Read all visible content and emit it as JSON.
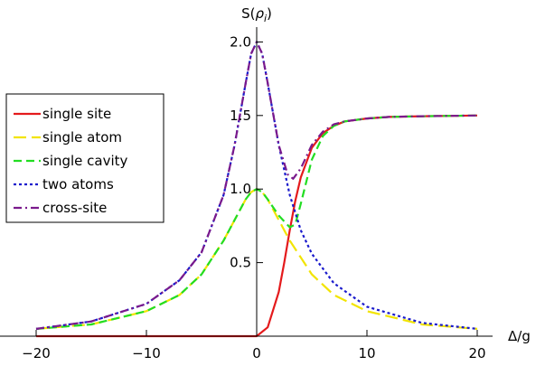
{
  "chart_data": {
    "type": "line",
    "title": "",
    "xlabel": "Δ/g",
    "ylabel": "S(ρ_i)",
    "ylabel_parts": {
      "prefix": "S(",
      "symbol": "ρ",
      "subscript": "i",
      "suffix": ")"
    },
    "xlim": [
      -20,
      20
    ],
    "ylim": [
      0,
      2.15
    ],
    "x_ticks": [
      -20,
      -10,
      0,
      10,
      20
    ],
    "x_tick_labels": [
      "−20",
      "−10",
      "0",
      "10",
      "20"
    ],
    "y_ticks": [
      0.5,
      1.0,
      1.5,
      2.0
    ],
    "y_tick_labels": [
      "0.5",
      "1.0",
      "1.5",
      "2.0"
    ],
    "grid": false,
    "legend_position": "left",
    "series": [
      {
        "name": "single site",
        "color": "#e41a1c",
        "dash": "solid",
        "x": [
          -20,
          -5,
          -2,
          -1,
          0,
          1,
          2,
          2.5,
          3,
          3.5,
          4,
          5,
          6,
          7,
          8,
          10,
          12,
          15,
          20
        ],
        "y": [
          0,
          0,
          0,
          0,
          0,
          0.06,
          0.3,
          0.5,
          0.72,
          0.92,
          1.08,
          1.28,
          1.38,
          1.43,
          1.46,
          1.48,
          1.49,
          1.495,
          1.5
        ]
      },
      {
        "name": "single atom",
        "color": "#f2e400",
        "dash": "long-dash",
        "x": [
          -20,
          -15,
          -10,
          -7,
          -5,
          -3,
          -2,
          -1,
          -0.5,
          0,
          0.5,
          1,
          2,
          3,
          5,
          7,
          10,
          15,
          20
        ],
        "y": [
          0.05,
          0.08,
          0.17,
          0.28,
          0.42,
          0.65,
          0.79,
          0.93,
          0.98,
          1.0,
          0.98,
          0.93,
          0.79,
          0.65,
          0.42,
          0.28,
          0.17,
          0.08,
          0.05
        ]
      },
      {
        "name": "single cavity",
        "color": "#22dd22",
        "dash": "dash",
        "x": [
          -20,
          -15,
          -10,
          -7,
          -5,
          -3,
          -2,
          -1,
          -0.5,
          0,
          0.5,
          1,
          2,
          3,
          3.5,
          4,
          5,
          6,
          7,
          8,
          10,
          12,
          15,
          20
        ],
        "y": [
          0.05,
          0.08,
          0.17,
          0.28,
          0.42,
          0.65,
          0.79,
          0.93,
          0.98,
          1.0,
          0.98,
          0.93,
          0.82,
          0.74,
          0.76,
          0.9,
          1.2,
          1.36,
          1.43,
          1.46,
          1.48,
          1.49,
          1.495,
          1.5
        ]
      },
      {
        "name": "two atoms",
        "color": "#1a1acc",
        "dash": "dot",
        "x": [
          -20,
          -15,
          -10,
          -7,
          -5,
          -3,
          -2,
          -1,
          -0.5,
          0,
          0.5,
          1,
          2,
          3,
          4,
          5,
          7,
          10,
          15,
          20
        ],
        "y": [
          0.05,
          0.1,
          0.22,
          0.38,
          0.57,
          0.96,
          1.3,
          1.72,
          1.92,
          2.0,
          1.92,
          1.72,
          1.3,
          0.96,
          0.72,
          0.56,
          0.36,
          0.2,
          0.09,
          0.05
        ]
      },
      {
        "name": "cross-site",
        "color": "#7a1a8c",
        "dash": "dash-dot",
        "x": [
          -20,
          -15,
          -10,
          -7,
          -5,
          -3,
          -2,
          -1,
          -0.5,
          0,
          0.5,
          1,
          2,
          2.8,
          3.3,
          4,
          5,
          6,
          7,
          8,
          10,
          12,
          15,
          20
        ],
        "y": [
          0.05,
          0.1,
          0.22,
          0.38,
          0.57,
          0.96,
          1.3,
          1.72,
          1.92,
          2.0,
          1.92,
          1.72,
          1.3,
          1.1,
          1.07,
          1.14,
          1.3,
          1.39,
          1.44,
          1.46,
          1.48,
          1.49,
          1.495,
          1.5
        ]
      }
    ]
  }
}
